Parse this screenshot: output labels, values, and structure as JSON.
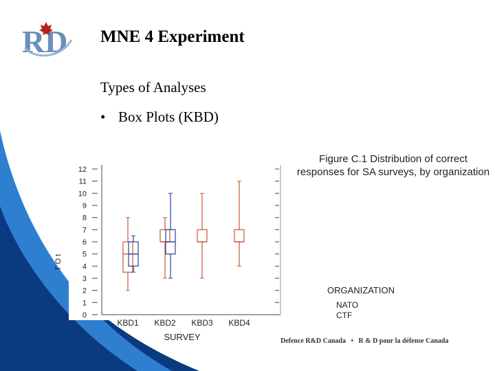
{
  "slide": {
    "title": "MNE 4 Experiment",
    "subtitle": "Types of Analyses",
    "bullet": "Box Plots (KBD)",
    "caption": "Figure C.1 Distribution of correct responses for SA surveys, by organization",
    "footer_en": "Defence R&D Canada",
    "footer_sep": "•",
    "footer_fr": "R & D pour la défense Canada",
    "logo_text": "RD"
  },
  "colors": {
    "swoosh_dark": "#0b3a80",
    "swoosh_light": "#2f7fd0",
    "nato": "#c8583a",
    "ctf": "#2e3f9a"
  },
  "chart_data": {
    "type": "box",
    "title": "",
    "xlabel": "SURVEY",
    "ylabel": "T O t",
    "categories": [
      "KBD1",
      "KBD2",
      "KBD3",
      "KBD4"
    ],
    "y_ticks": [
      "0",
      "1",
      "2",
      "3",
      "4",
      "5",
      "6",
      "7",
      "8",
      "9",
      "10",
      "11",
      "12"
    ],
    "ylim": [
      0,
      12
    ],
    "legend_title": "ORGANIZATION",
    "series": [
      {
        "name": "NATO",
        "color": "#c8583a",
        "boxes": [
          {
            "category": "KBD1",
            "min": 2,
            "q1": 3.5,
            "median": 5,
            "q3": 6,
            "max": 8
          },
          {
            "category": "KBD2",
            "min": 3,
            "q1": 6,
            "median": 6,
            "q3": 7,
            "max": 8
          },
          {
            "category": "KBD3",
            "min": 3,
            "q1": 6,
            "median": 6,
            "q3": 7,
            "max": 10
          },
          {
            "category": "KBD4",
            "min": 4,
            "q1": 6,
            "median": 6,
            "q3": 7,
            "max": 11
          }
        ]
      },
      {
        "name": "CTF",
        "color": "#2e3f9a",
        "boxes": [
          {
            "category": "KBD1",
            "min": 3.5,
            "q1": 4,
            "median": 5,
            "q3": 6,
            "max": 6.5
          },
          {
            "category": "KBD2",
            "min": 3,
            "q1": 5,
            "median": 6,
            "q3": 7,
            "max": 10
          }
        ]
      }
    ]
  }
}
